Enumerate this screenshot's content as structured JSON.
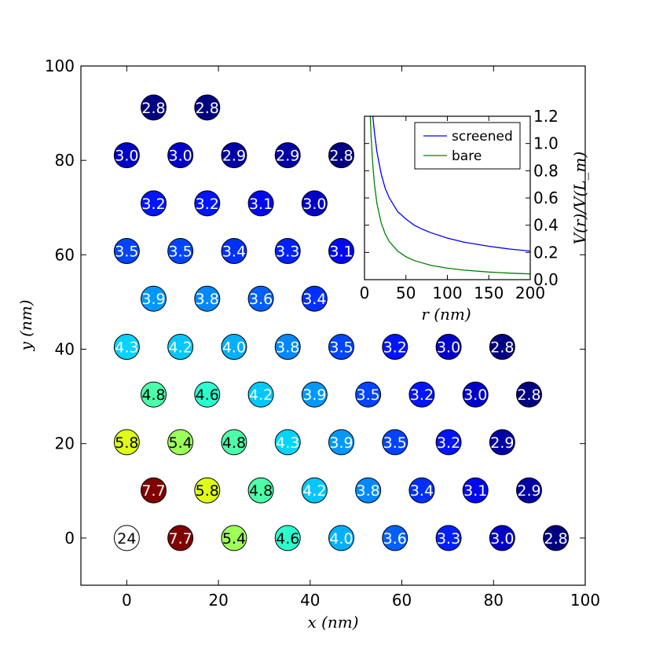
{
  "chart_data": [
    {
      "type": "scatter",
      "xlabel": "x (nm)",
      "ylabel": "y (nm)",
      "xlim": [
        -10,
        100
      ],
      "ylim": [
        -10,
        100
      ],
      "xticks": [
        "0",
        "20",
        "40",
        "60",
        "80",
        "100"
      ],
      "yticks": [
        "0",
        "20",
        "40",
        "60",
        "80",
        "100"
      ],
      "colormap": "jet",
      "color_range": [
        2.8,
        7.7
      ],
      "points": [
        {
          "x": 0,
          "y": 0,
          "label": "24",
          "color": "#ffffff",
          "text": "#000000"
        },
        {
          "x": 11.7,
          "y": 0,
          "label": "7.7",
          "color": "#800000",
          "text": "#ffffff"
        },
        {
          "x": 23.4,
          "y": 0,
          "label": "5.4",
          "color": "#9dff5a",
          "text": "#000000"
        },
        {
          "x": 35.1,
          "y": 0,
          "label": "4.6",
          "color": "#2bffd0",
          "text": "#000000"
        },
        {
          "x": 46.8,
          "y": 0,
          "label": "4.0",
          "color": "#00b0ff",
          "text": "#ffffff"
        },
        {
          "x": 58.5,
          "y": 0,
          "label": "3.6",
          "color": "#0060ff",
          "text": "#ffffff"
        },
        {
          "x": 70.2,
          "y": 0,
          "label": "3.3",
          "color": "#0020ff",
          "text": "#ffffff"
        },
        {
          "x": 81.9,
          "y": 0,
          "label": "3.0",
          "color": "#0000c8",
          "text": "#ffffff"
        },
        {
          "x": 93.6,
          "y": 0,
          "label": "2.8",
          "color": "#000080",
          "text": "#ffffff"
        },
        {
          "x": 5.85,
          "y": 10.1,
          "label": "7.7",
          "color": "#800000",
          "text": "#ffffff"
        },
        {
          "x": 17.55,
          "y": 10.1,
          "label": "5.8",
          "color": "#e0ff18",
          "text": "#000000"
        },
        {
          "x": 29.25,
          "y": 10.1,
          "label": "4.8",
          "color": "#4dffaa",
          "text": "#000000"
        },
        {
          "x": 40.95,
          "y": 10.1,
          "label": "4.2",
          "color": "#00c8ff",
          "text": "#ffffff"
        },
        {
          "x": 52.65,
          "y": 10.1,
          "label": "3.8",
          "color": "#0088ff",
          "text": "#ffffff"
        },
        {
          "x": 64.35,
          "y": 10.1,
          "label": "3.4",
          "color": "#0030ff",
          "text": "#ffffff"
        },
        {
          "x": 76.05,
          "y": 10.1,
          "label": "3.1",
          "color": "#0008f0",
          "text": "#ffffff"
        },
        {
          "x": 87.75,
          "y": 10.1,
          "label": "2.9",
          "color": "#0000a4",
          "text": "#ffffff"
        },
        {
          "x": 0,
          "y": 20.3,
          "label": "5.8",
          "color": "#e0ff18",
          "text": "#000000"
        },
        {
          "x": 11.7,
          "y": 20.3,
          "label": "5.4",
          "color": "#9dff5a",
          "text": "#000000"
        },
        {
          "x": 23.4,
          "y": 20.3,
          "label": "4.8",
          "color": "#4dffaa",
          "text": "#000000"
        },
        {
          "x": 35.1,
          "y": 20.3,
          "label": "4.3",
          "color": "#00d4ff",
          "text": "#ffffff"
        },
        {
          "x": 46.8,
          "y": 20.3,
          "label": "3.9",
          "color": "#0098ff",
          "text": "#ffffff"
        },
        {
          "x": 58.5,
          "y": 20.3,
          "label": "3.5",
          "color": "#0044ff",
          "text": "#ffffff"
        },
        {
          "x": 70.2,
          "y": 20.3,
          "label": "3.2",
          "color": "#0014ff",
          "text": "#ffffff"
        },
        {
          "x": 81.9,
          "y": 20.3,
          "label": "2.9",
          "color": "#0000a4",
          "text": "#ffffff"
        },
        {
          "x": 5.85,
          "y": 30.4,
          "label": "4.8",
          "color": "#4dffaa",
          "text": "#000000"
        },
        {
          "x": 17.55,
          "y": 30.4,
          "label": "4.6",
          "color": "#2bffd0",
          "text": "#000000"
        },
        {
          "x": 29.25,
          "y": 30.4,
          "label": "4.2",
          "color": "#00c8ff",
          "text": "#ffffff"
        },
        {
          "x": 40.95,
          "y": 30.4,
          "label": "3.9",
          "color": "#0098ff",
          "text": "#ffffff"
        },
        {
          "x": 52.65,
          "y": 30.4,
          "label": "3.5",
          "color": "#0044ff",
          "text": "#ffffff"
        },
        {
          "x": 64.35,
          "y": 30.4,
          "label": "3.2",
          "color": "#0014ff",
          "text": "#ffffff"
        },
        {
          "x": 76.05,
          "y": 30.4,
          "label": "3.0",
          "color": "#0000c8",
          "text": "#ffffff"
        },
        {
          "x": 87.75,
          "y": 30.4,
          "label": "2.8",
          "color": "#000080",
          "text": "#ffffff"
        },
        {
          "x": 0,
          "y": 40.5,
          "label": "4.3",
          "color": "#00d4ff",
          "text": "#ffffff"
        },
        {
          "x": 11.7,
          "y": 40.5,
          "label": "4.2",
          "color": "#00c8ff",
          "text": "#ffffff"
        },
        {
          "x": 23.4,
          "y": 40.5,
          "label": "4.0",
          "color": "#00b0ff",
          "text": "#ffffff"
        },
        {
          "x": 35.1,
          "y": 40.5,
          "label": "3.8",
          "color": "#0088ff",
          "text": "#ffffff"
        },
        {
          "x": 46.8,
          "y": 40.5,
          "label": "3.5",
          "color": "#0044ff",
          "text": "#ffffff"
        },
        {
          "x": 58.5,
          "y": 40.5,
          "label": "3.2",
          "color": "#0014ff",
          "text": "#ffffff"
        },
        {
          "x": 70.2,
          "y": 40.5,
          "label": "3.0",
          "color": "#0000c8",
          "text": "#ffffff"
        },
        {
          "x": 81.9,
          "y": 40.5,
          "label": "2.8",
          "color": "#000080",
          "text": "#ffffff"
        },
        {
          "x": 5.85,
          "y": 50.7,
          "label": "3.9",
          "color": "#0098ff",
          "text": "#ffffff"
        },
        {
          "x": 17.55,
          "y": 50.7,
          "label": "3.8",
          "color": "#0088ff",
          "text": "#ffffff"
        },
        {
          "x": 29.25,
          "y": 50.7,
          "label": "3.6",
          "color": "#0060ff",
          "text": "#ffffff"
        },
        {
          "x": 40.95,
          "y": 50.7,
          "label": "3.4",
          "color": "#0030ff",
          "text": "#ffffff"
        },
        {
          "x": 0,
          "y": 60.8,
          "label": "3.5",
          "color": "#0044ff",
          "text": "#ffffff"
        },
        {
          "x": 11.7,
          "y": 60.8,
          "label": "3.5",
          "color": "#0044ff",
          "text": "#ffffff"
        },
        {
          "x": 23.4,
          "y": 60.8,
          "label": "3.4",
          "color": "#0030ff",
          "text": "#ffffff"
        },
        {
          "x": 35.1,
          "y": 60.8,
          "label": "3.3",
          "color": "#0020ff",
          "text": "#ffffff"
        },
        {
          "x": 46.8,
          "y": 60.8,
          "label": "3.1",
          "color": "#0008f0",
          "text": "#ffffff"
        },
        {
          "x": 5.85,
          "y": 70.9,
          "label": "3.2",
          "color": "#0014ff",
          "text": "#ffffff"
        },
        {
          "x": 17.55,
          "y": 70.9,
          "label": "3.2",
          "color": "#0014ff",
          "text": "#ffffff"
        },
        {
          "x": 29.25,
          "y": 70.9,
          "label": "3.1",
          "color": "#0008f0",
          "text": "#ffffff"
        },
        {
          "x": 40.95,
          "y": 70.9,
          "label": "3.0",
          "color": "#0000c8",
          "text": "#ffffff"
        },
        {
          "x": 0,
          "y": 81.1,
          "label": "3.0",
          "color": "#0000c8",
          "text": "#ffffff"
        },
        {
          "x": 11.7,
          "y": 81.1,
          "label": "3.0",
          "color": "#0000c8",
          "text": "#ffffff"
        },
        {
          "x": 23.4,
          "y": 81.1,
          "label": "2.9",
          "color": "#0000a4",
          "text": "#ffffff"
        },
        {
          "x": 35.1,
          "y": 81.1,
          "label": "2.9",
          "color": "#0000a4",
          "text": "#ffffff"
        },
        {
          "x": 46.8,
          "y": 81.1,
          "label": "2.8",
          "color": "#000080",
          "text": "#ffffff"
        },
        {
          "x": 5.85,
          "y": 91.2,
          "label": "2.8",
          "color": "#000080",
          "text": "#ffffff"
        },
        {
          "x": 17.55,
          "y": 91.2,
          "label": "2.8",
          "color": "#000080",
          "text": "#ffffff"
        }
      ]
    },
    {
      "type": "line",
      "xlabel": "r (nm)",
      "ylabel": "V(r)/V(L_m)",
      "xlim": [
        0,
        200
      ],
      "ylim": [
        0,
        1.2
      ],
      "xticks": [
        "0",
        "50",
        "100",
        "150",
        "200"
      ],
      "yticks": [
        "0.0",
        "0.2",
        "0.4",
        "0.6",
        "0.8",
        "1.0",
        "1.2"
      ],
      "legend_position": "top-right",
      "series": [
        {
          "name": "screened",
          "color": "#0000ff",
          "x": [
            10,
            12,
            15,
            20,
            25,
            30,
            40,
            50,
            60,
            70,
            80,
            100,
            120,
            150,
            175,
            200
          ],
          "y": [
            1.2,
            1.08,
            0.94,
            0.78,
            0.67,
            0.6,
            0.5,
            0.445,
            0.4,
            0.37,
            0.345,
            0.305,
            0.275,
            0.245,
            0.225,
            0.21
          ]
        },
        {
          "name": "bare",
          "color": "#008000",
          "x": [
            7,
            8,
            10,
            12,
            15,
            20,
            25,
            30,
            40,
            50,
            60,
            80,
            100,
            120,
            150,
            175,
            200
          ],
          "y": [
            1.2,
            1.05,
            0.84,
            0.7,
            0.56,
            0.42,
            0.336,
            0.28,
            0.21,
            0.168,
            0.14,
            0.105,
            0.084,
            0.07,
            0.056,
            0.048,
            0.042
          ]
        }
      ]
    }
  ]
}
